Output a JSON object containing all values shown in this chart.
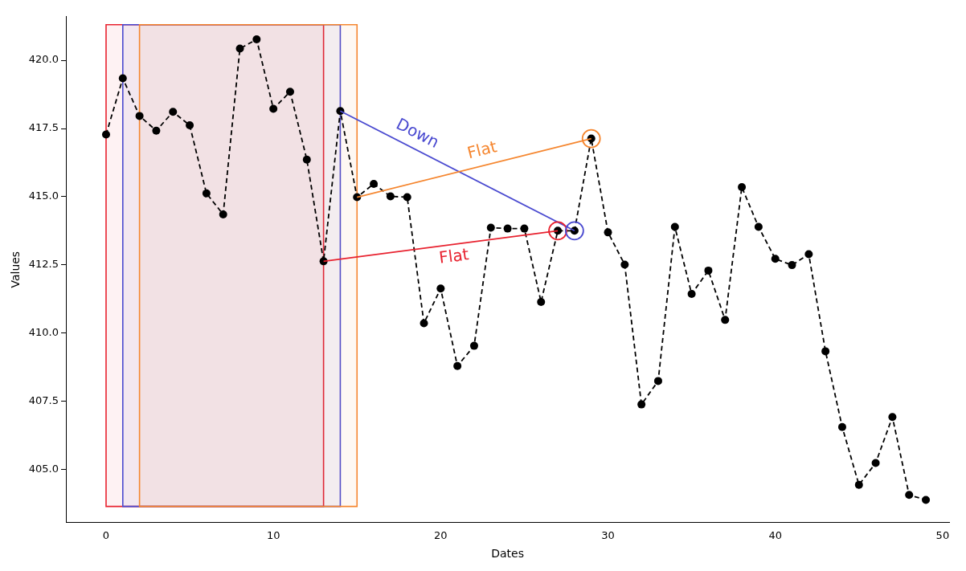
{
  "chart_data": {
    "type": "line",
    "xlabel": "Dates",
    "ylabel": "Values",
    "xlim": [
      -2.4,
      50.4
    ],
    "xticks": [
      0,
      10,
      20,
      30,
      40,
      50
    ],
    "ylim": [
      403.05,
      421.6
    ],
    "yticks": [
      {
        "value": 405,
        "label": "405.0"
      },
      {
        "value": 407.5,
        "label": "407.5"
      },
      {
        "value": 410,
        "label": "410.0"
      },
      {
        "value": 412.5,
        "label": "412.5"
      },
      {
        "value": 415,
        "label": "415.0"
      },
      {
        "value": 417.5,
        "label": "417.5"
      },
      {
        "value": 420,
        "label": "420.0"
      }
    ],
    "grid": false,
    "legend": false,
    "x": [
      0,
      1,
      2,
      3,
      4,
      5,
      6,
      7,
      8,
      9,
      10,
      11,
      12,
      13,
      14,
      15,
      16,
      17,
      18,
      19,
      20,
      21,
      22,
      23,
      24,
      25,
      26,
      27,
      28,
      29,
      30,
      31,
      32,
      33,
      34,
      35,
      36,
      37,
      38,
      39,
      40,
      41,
      42,
      43,
      44,
      45,
      46,
      47,
      48,
      49
    ],
    "series": [
      {
        "type": "line",
        "color": "#000000",
        "line_style": "dashed",
        "marker": "circle",
        "values": [
          417.28,
          419.34,
          417.96,
          417.42,
          418.11,
          417.62,
          415.12,
          414.35,
          420.43,
          420.77,
          418.22,
          418.85,
          416.36,
          412.63,
          418.14,
          414.98,
          415.47,
          415.01,
          414.98,
          410.36,
          411.63,
          408.79,
          409.53,
          413.86,
          413.83,
          413.83,
          411.14,
          413.75,
          413.75,
          417.13,
          413.69,
          412.51,
          407.38,
          408.24,
          413.89,
          411.43,
          412.29,
          410.48,
          415.35,
          413.89,
          412.72,
          412.49,
          412.89,
          409.33,
          406.55,
          404.43,
          405.23,
          406.92,
          404.06,
          403.88
        ]
      },
      {
        "type": "line",
        "color": "#e8222f",
        "line_style": "solid",
        "x": [
          13,
          27
        ],
        "values": [
          412.63,
          413.75
        ]
      },
      {
        "type": "line",
        "color": "#4a4ad0",
        "line_style": "solid",
        "x": [
          14,
          28
        ],
        "values": [
          418.14,
          413.75
        ]
      },
      {
        "type": "line",
        "color": "#f5862f",
        "line_style": "solid",
        "x": [
          15,
          29
        ],
        "values": [
          414.98,
          417.13
        ]
      },
      {
        "type": "scatter",
        "color": "#e8222f",
        "marker": "circle",
        "x": [
          27
        ],
        "values": [
          413.75
        ]
      },
      {
        "type": "scatter",
        "color": "#4a4ad0",
        "marker": "circle",
        "x": [
          28
        ],
        "values": [
          413.75
        ]
      },
      {
        "type": "scatter",
        "color": "#f5862f",
        "marker": "circle",
        "x": [
          29
        ],
        "values": [
          417.13
        ]
      }
    ],
    "bands": [
      {
        "axis": "x",
        "from": 0,
        "to": 13,
        "color": "#e8222f"
      },
      {
        "axis": "x",
        "from": 1,
        "to": 14,
        "color": "#4a4ad0"
      },
      {
        "axis": "x",
        "from": 2,
        "to": 15,
        "color": "#f5862f"
      }
    ],
    "annotations": [
      "Flat",
      "Down",
      "Flat"
    ]
  }
}
